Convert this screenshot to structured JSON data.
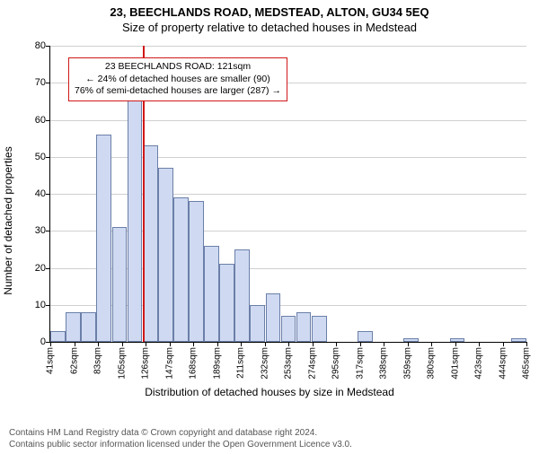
{
  "title_main": "23, BEECHLANDS ROAD, MEDSTEAD, ALTON, GU34 5EQ",
  "title_sub": "Size of property relative to detached houses in Medstead",
  "ylabel": "Number of detached properties",
  "xlabel": "Distribution of detached houses by size in Medstead",
  "ylim": [
    0,
    80
  ],
  "ytick_step": 10,
  "yticks": [
    0,
    10,
    20,
    30,
    40,
    50,
    60,
    70,
    80
  ],
  "x_categories": [
    "41sqm",
    "62sqm",
    "83sqm",
    "105sqm",
    "126sqm",
    "147sqm",
    "168sqm",
    "189sqm",
    "211sqm",
    "232sqm",
    "253sqm",
    "274sqm",
    "295sqm",
    "317sqm",
    "338sqm",
    "359sqm",
    "380sqm",
    "401sqm",
    "423sqm",
    "444sqm",
    "465sqm"
  ],
  "values": [
    3,
    8,
    8,
    56,
    31,
    67,
    53,
    47,
    39,
    38,
    26,
    21,
    25,
    10,
    13,
    7,
    8,
    7,
    0,
    0,
    3,
    0,
    0,
    1,
    0,
    0,
    1,
    0,
    0,
    0,
    1
  ],
  "bar_fill": "#cfdaf2",
  "bar_border": "#6b7fa8",
  "grid_color": "#d0d0d0",
  "background_color": "#ffffff",
  "marker": {
    "color": "#d01818",
    "position_index": 6,
    "annotation_lines": [
      "23 BEECHLANDS ROAD: 121sqm",
      "← 24% of detached houses are smaller (90)",
      "76% of semi-detached houses are larger (287) →"
    ]
  },
  "footer_line1": "Contains HM Land Registry data © Crown copyright and database right 2024.",
  "footer_line2": "Contains public sector information licensed under the Open Government Licence v3.0.",
  "title_fontsize": 13,
  "label_fontsize": 12,
  "tick_fontsize": 11,
  "annotation_fontsize": 10.5,
  "footer_fontsize": 10
}
